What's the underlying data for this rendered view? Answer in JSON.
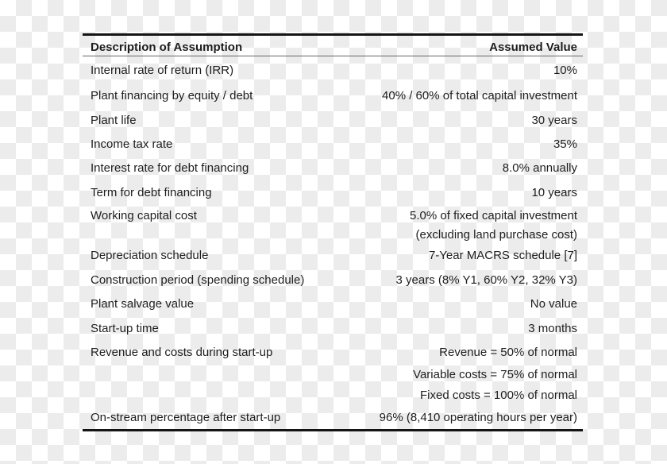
{
  "table": {
    "columns": {
      "description": "Description of Assumption",
      "value": "Assumed Value"
    },
    "rows": [
      {
        "desc": "Internal rate of return (IRR)",
        "value": "10%"
      },
      {
        "desc": "Plant financing by equity / debt",
        "value": "40% / 60% of total capital investment"
      },
      {
        "desc": "Plant life",
        "value": "30 years"
      },
      {
        "desc": "Income tax rate",
        "value": "35%"
      },
      {
        "desc": "Interest rate for debt financing",
        "value": "8.0% annually"
      },
      {
        "desc": "Term for debt financing",
        "value": "10 years"
      },
      {
        "desc": "Working capital cost",
        "value": "5.0% of fixed capital investment"
      },
      {
        "desc": "",
        "value": "(excluding land purchase cost)",
        "continuation": true
      },
      {
        "desc": "Depreciation schedule",
        "value": "7-Year MACRS schedule [7]"
      },
      {
        "desc": "Construction period (spending schedule)",
        "value": "3 years (8% Y1, 60% Y2, 32% Y3)"
      },
      {
        "desc": "Plant salvage value",
        "value": "No value"
      },
      {
        "desc": "Start-up time",
        "value": "3 months"
      },
      {
        "desc": "Revenue and costs during start-up",
        "value": "Revenue = 50% of normal"
      },
      {
        "desc": "",
        "value": "Variable costs = 75% of normal",
        "continuation": true
      },
      {
        "desc": "",
        "value": "Fixed costs = 100% of normal",
        "continuation": true
      },
      {
        "desc": "On-stream percentage after start-up",
        "value": "96% (8,410 operating hours per year)"
      }
    ]
  },
  "colors": {
    "text": "#1e1e1e",
    "rule_heavy": "#141414",
    "rule_light": "#666666",
    "checker_light": "#ffffff",
    "checker_gray": "#ececec"
  }
}
